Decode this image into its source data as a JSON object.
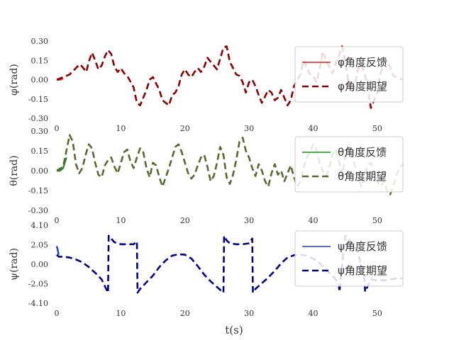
{
  "chart_data": [
    {
      "type": "line",
      "ylabel": "φ(rad)",
      "ylim": [
        -0.3,
        0.3
      ],
      "yticks": [
        "0.30",
        "0.15",
        "0.00",
        "-0.15",
        "-0.30"
      ],
      "ytick_values": [
        0.3,
        0.15,
        0.0,
        -0.15,
        -0.3
      ],
      "xlim": [
        0,
        54
      ],
      "xticks": [
        "0",
        "10",
        "20",
        "30",
        "40",
        "50"
      ],
      "xtick_values": [
        0,
        10,
        20,
        30,
        40,
        50
      ],
      "legend_position": "top-right",
      "series": [
        {
          "name": "φ角度反馈",
          "color": "#e41a1c",
          "style": "solid",
          "x": [
            0,
            0.5,
            1.0
          ],
          "y": [
            0.0,
            0.0,
            0.01
          ]
        },
        {
          "name": "φ角度期望",
          "color": "#8b0000",
          "style": "dashed",
          "x": [
            0,
            1,
            2,
            3,
            3.6,
            4,
            4.6,
            5,
            5.5,
            6,
            6.5,
            7,
            7.5,
            8,
            8.5,
            9,
            9.5,
            10,
            10.5,
            11,
            12,
            12.5,
            13,
            14,
            14.5,
            15,
            16,
            16.5,
            17,
            17.5,
            18,
            18.5,
            19,
            19.5,
            20,
            20.5,
            21,
            21.5,
            22,
            22.5,
            23,
            23.5,
            24,
            24.5,
            25,
            26,
            26.5,
            27,
            27.5,
            28,
            28.5,
            29,
            29.5,
            30,
            30.5,
            31,
            31.5,
            32,
            32.5,
            33,
            33.5,
            34,
            34.5,
            35,
            35.5,
            36,
            36.5,
            37,
            38,
            38.5,
            39,
            39.5,
            40,
            40.5,
            41,
            41.5,
            42,
            42.5,
            43,
            43.5,
            44,
            44.5,
            45,
            45.5,
            46,
            46.5,
            47,
            47.5,
            48,
            48.5,
            49,
            50,
            50.5,
            51,
            51.5,
            52,
            52.5,
            53,
            53.5,
            54
          ],
          "y": [
            0.0,
            0.02,
            0.04,
            0.09,
            0.12,
            0.1,
            0.06,
            0.14,
            0.21,
            0.15,
            0.08,
            0.11,
            0.18,
            0.23,
            0.2,
            0.1,
            0.06,
            0.09,
            0.05,
            0.03,
            -0.06,
            -0.18,
            -0.2,
            -0.08,
            0.0,
            0.02,
            -0.08,
            -0.16,
            -0.18,
            -0.2,
            -0.12,
            -0.1,
            -0.05,
            0.04,
            0.08,
            0.04,
            0.02,
            0.06,
            0.09,
            0.06,
            0.1,
            0.17,
            0.14,
            0.11,
            0.08,
            0.25,
            0.26,
            0.14,
            0.09,
            0.04,
            0.03,
            -0.02,
            -0.1,
            -0.02,
            0.0,
            -0.05,
            -0.12,
            -0.18,
            -0.13,
            -0.08,
            -0.1,
            -0.16,
            -0.14,
            -0.08,
            -0.14,
            -0.2,
            -0.16,
            -0.05,
            0.04,
            0.15,
            0.1,
            0.04,
            0.03,
            -0.02,
            0.08,
            0.22,
            0.15,
            0.1,
            0.05,
            0.12,
            0.18,
            0.26,
            0.15,
            -0.02,
            -0.1,
            -0.05,
            0.08,
            0.12,
            0.05,
            -0.05,
            -0.22,
            -0.1,
            0.05,
            0.12,
            0.15,
            0.1,
            0.03,
            0.02,
            0.01,
            0.0
          ]
        }
      ]
    },
    {
      "type": "line",
      "ylabel": "θ(rad)",
      "ylim": [
        -0.3,
        0.3
      ],
      "yticks": [
        "0.30",
        "0.15",
        "0.00",
        "-0.15",
        "-0.30"
      ],
      "ytick_values": [
        0.3,
        0.15,
        0.0,
        -0.15,
        -0.3
      ],
      "xlim": [
        0,
        54
      ],
      "xticks": [
        "0",
        "10",
        "20",
        "30",
        "40",
        "50"
      ],
      "xtick_values": [
        0,
        10,
        20,
        30,
        40,
        50
      ],
      "legend_position": "top-right",
      "series": [
        {
          "name": "θ角度反馈",
          "color": "#228b22",
          "style": "solid",
          "x": [
            0,
            0.5,
            1.0,
            1.5
          ],
          "y": [
            0.0,
            0.0,
            0.02,
            0.1
          ]
        },
        {
          "name": "θ角度期望",
          "color": "#556b2f",
          "style": "dashed",
          "x": [
            0,
            1,
            1.5,
            2,
            2.5,
            3,
            3.5,
            4,
            4.5,
            5,
            5.5,
            6,
            6.5,
            7,
            7.5,
            8,
            8.5,
            9,
            9.5,
            10,
            10.5,
            11,
            11.5,
            12,
            12.5,
            13,
            13.5,
            14,
            14.5,
            15,
            15.5,
            16,
            16.5,
            17,
            17.5,
            18,
            18.5,
            19,
            19.5,
            20,
            20.5,
            21,
            21.5,
            22,
            22.5,
            23,
            23.5,
            24,
            24.5,
            25,
            25.5,
            26,
            26.5,
            27,
            27.5,
            28,
            28.5,
            29,
            29.5,
            30,
            30.5,
            31,
            31.5,
            32,
            32.5,
            33,
            33.5,
            34,
            34.5,
            35,
            35.5,
            36,
            36.5,
            37,
            37.5,
            38,
            38.5,
            39,
            39.5,
            40,
            40.5,
            41,
            41.5,
            42,
            42.5,
            43,
            43.5,
            44,
            44.5,
            45,
            45.5,
            46,
            46.5,
            47,
            47.5,
            48,
            48.5,
            49,
            49.5,
            50,
            50.5,
            51,
            51.5,
            52,
            52.5,
            53,
            53.5,
            54
          ],
          "y": [
            0.0,
            0.03,
            0.15,
            0.27,
            0.22,
            0.05,
            -0.02,
            0.02,
            0.12,
            0.2,
            0.17,
            0.06,
            -0.03,
            -0.05,
            0.04,
            0.08,
            0.1,
            0.03,
            -0.02,
            0.06,
            0.14,
            0.16,
            0.07,
            0.02,
            0.1,
            0.17,
            0.14,
            0.02,
            -0.05,
            0.06,
            0.04,
            -0.05,
            -0.12,
            -0.05,
            0.02,
            0.1,
            0.18,
            0.2,
            0.14,
            0.06,
            -0.02,
            -0.06,
            -0.03,
            0.04,
            0.1,
            0.12,
            0.03,
            -0.08,
            -0.04,
            0.06,
            0.18,
            0.12,
            -0.05,
            -0.1,
            -0.03,
            0.08,
            0.22,
            0.25,
            0.15,
            0.1,
            0.02,
            -0.04,
            0.05,
            0.0,
            -0.08,
            -0.12,
            -0.02,
            0.05,
            -0.03,
            0.0,
            -0.08,
            -0.02,
            0.04,
            -0.05,
            -0.12,
            -0.08,
            0.02,
            0.1,
            0.14,
            0.2,
            0.16,
            0.06,
            0.0,
            -0.04,
            0.02,
            0.12,
            0.16,
            0.08,
            -0.03,
            0.1,
            0.18,
            0.12,
            0.04,
            -0.05,
            -0.12,
            -0.04,
            0.04,
            0.06,
            0.0,
            -0.08,
            -0.12,
            -0.08,
            -0.15,
            -0.18,
            -0.12,
            -0.03,
            0.02,
            0.05
          ]
        }
      ]
    },
    {
      "type": "line",
      "ylabel": "ψ(rad)",
      "ylim": [
        -4.1,
        4.1
      ],
      "yticks": [
        "4.10",
        "2.05",
        "0.00",
        "-2.05",
        "-4.10"
      ],
      "ytick_values": [
        4.1,
        2.05,
        0.0,
        -2.05,
        -4.1
      ],
      "xlim": [
        0,
        54
      ],
      "xticks": [
        "0",
        "10",
        "20",
        "30",
        "40",
        "50"
      ],
      "xtick_values": [
        0,
        10,
        20,
        30,
        40,
        50
      ],
      "legend_position": "top-right",
      "series": [
        {
          "name": "ψ角度反馈",
          "color": "#1f3fbf",
          "style": "solid",
          "x": [
            0,
            0.15,
            0.3
          ],
          "y": [
            1.9,
            1.5,
            1.0
          ]
        },
        {
          "name": "ψ角度期望",
          "color": "#00008b",
          "style": "dashed",
          "x": [
            0,
            0.3,
            1,
            2,
            3,
            4,
            5,
            6,
            7,
            7.5,
            8,
            8.1,
            8.5,
            9,
            10,
            11,
            12,
            12.5,
            12.6,
            13,
            14,
            15,
            16,
            17,
            18,
            19,
            20,
            21,
            22,
            23,
            24,
            25,
            26,
            26.1,
            26.5,
            27,
            28,
            29,
            30,
            30.5,
            30.6,
            31,
            32,
            33,
            34,
            35,
            36,
            37,
            38,
            39,
            40,
            41,
            42,
            43,
            44,
            44.1,
            45,
            46,
            47,
            48,
            48.1,
            49,
            50,
            51,
            52,
            53,
            54
          ],
          "y": [
            1.0,
            0.8,
            0.78,
            0.7,
            0.5,
            0.2,
            -0.3,
            -0.9,
            -1.6,
            -2.3,
            -3.0,
            3.0,
            2.7,
            2.3,
            2.1,
            2.1,
            2.1,
            2.4,
            -3.0,
            -2.6,
            -1.9,
            -1.2,
            -0.3,
            0.4,
            0.9,
            1.05,
            1.0,
            0.6,
            -0.2,
            -1.1,
            -1.8,
            -2.4,
            -3.0,
            3.0,
            2.5,
            2.2,
            2.1,
            2.1,
            2.2,
            2.7,
            -3.0,
            -2.6,
            -2.0,
            -1.4,
            -0.7,
            0.1,
            0.7,
            0.95,
            1.0,
            0.9,
            0.6,
            0.1,
            -0.6,
            -1.2,
            -2.0,
            -2.9,
            3.0,
            2.3,
            1.2,
            -1.5,
            -2.9,
            -1.6,
            -1.7,
            -1.7,
            -1.6,
            -1.5,
            -1.5
          ]
        }
      ]
    }
  ],
  "shared_xlabel": "t(s)"
}
